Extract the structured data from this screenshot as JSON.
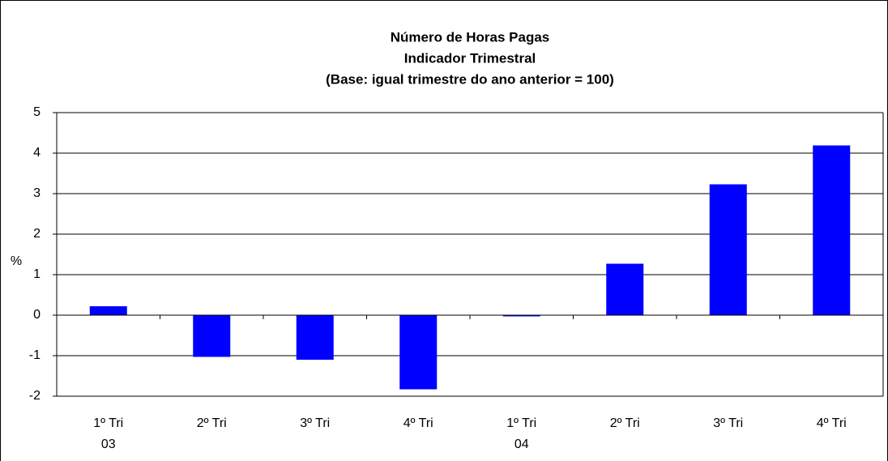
{
  "chart_data": {
    "type": "bar",
    "title": [
      "Número de Horas Pagas",
      "Indicador Trimestral",
      "(Base: igual trimestre do ano anterior = 100)"
    ],
    "y_label": "%",
    "categories": [
      "1º Tri",
      "2º Tri",
      "3º Tri",
      "4º Tri",
      "1º Tri",
      "2º Tri",
      "3º Tri",
      "4º Tri"
    ],
    "x_sublabels": [
      "03",
      null,
      null,
      null,
      "04",
      null,
      null,
      null
    ],
    "values": [
      0.22,
      -1.03,
      -1.1,
      -1.83,
      -0.03,
      1.27,
      3.23,
      4.19
    ],
    "color": "#0000ff",
    "ylim": [
      -2,
      5
    ],
    "yticks": [
      -2,
      -1,
      0,
      1,
      2,
      3,
      4,
      5
    ],
    "grid": true
  }
}
